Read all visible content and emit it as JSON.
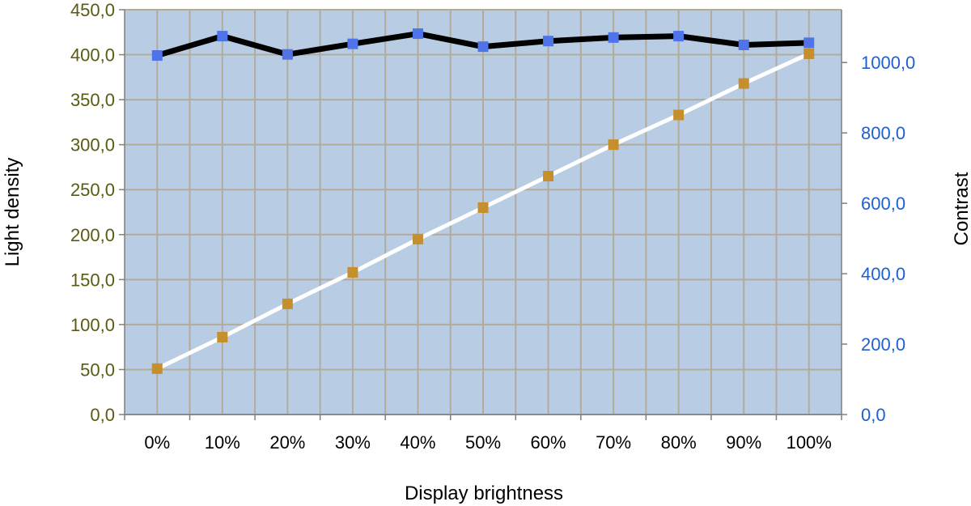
{
  "chart_data": {
    "type": "line",
    "categories": [
      "0%",
      "10%",
      "20%",
      "30%",
      "40%",
      "50%",
      "60%",
      "70%",
      "80%",
      "90%",
      "100%"
    ],
    "xlabel": "Display brightness",
    "ylabel": "Light density",
    "y2label": "Contrast",
    "ylim": [
      0,
      450
    ],
    "y2lim": [
      0,
      1150
    ],
    "yticks": [
      "0,0",
      "50,0",
      "100,0",
      "150,0",
      "200,0",
      "250,0",
      "300,0",
      "350,0",
      "400,0",
      "450,0"
    ],
    "y2ticks": [
      "0,0",
      "200,0",
      "400,0",
      "600,0",
      "800,0",
      "1000,0"
    ],
    "grid": true,
    "series": [
      {
        "axis": "left",
        "values": [
          51,
          86,
          123,
          158,
          195,
          230,
          265,
          300,
          333,
          368,
          401
        ],
        "line_color": "#ffffff",
        "marker_color": "#c48f2c"
      },
      {
        "axis": "right",
        "values": [
          1020,
          1075,
          1023,
          1053,
          1082,
          1045,
          1061,
          1071,
          1075,
          1050,
          1056
        ],
        "line_color": "#000000",
        "marker_color": "#4f73e8"
      }
    ],
    "colors": {
      "plot_bg": "#b8cce4",
      "grid": "#b3ab9a",
      "left_tick": "#5b5a10",
      "right_tick": "#1f5fd0"
    }
  }
}
